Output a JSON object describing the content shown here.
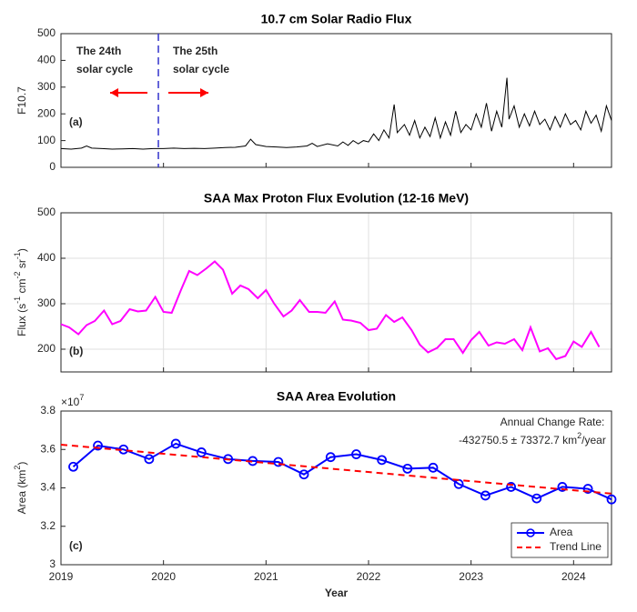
{
  "chart_data": [
    {
      "type": "line",
      "title": "10.7 cm Solar Radio Flux",
      "ylabel": [
        "F10.7"
      ],
      "xlim": [
        2019,
        2024.37
      ],
      "xticks": [
        2019,
        2020,
        2021,
        2022,
        2023,
        2024
      ],
      "xtick_labels": false,
      "ylim": [
        0,
        500
      ],
      "yticks": [
        0,
        100,
        200,
        300,
        400,
        500
      ],
      "grid": false,
      "annotations": [
        "The 24th",
        "solar cycle",
        "The 25th",
        "solar cycle",
        "(a)"
      ],
      "divider_x": 2019.95,
      "series": [
        {
          "color": "#000000",
          "x": [
            2019.0,
            2019.1,
            2019.2,
            2019.25,
            2019.3,
            2019.4,
            2019.5,
            2019.6,
            2019.7,
            2019.8,
            2019.9,
            2020.0,
            2020.1,
            2020.2,
            2020.3,
            2020.4,
            2020.5,
            2020.6,
            2020.7,
            2020.8,
            2020.85,
            2020.9,
            2021.0,
            2021.1,
            2021.2,
            2021.3,
            2021.4,
            2021.45,
            2021.5,
            2021.6,
            2021.7,
            2021.75,
            2021.8,
            2021.85,
            2021.9,
            2021.95,
            2022.0,
            2022.05,
            2022.1,
            2022.15,
            2022.2,
            2022.25,
            2022.28,
            2022.35,
            2022.4,
            2022.45,
            2022.5,
            2022.55,
            2022.6,
            2022.65,
            2022.7,
            2022.75,
            2022.8,
            2022.85,
            2022.9,
            2022.95,
            2023.0,
            2023.05,
            2023.1,
            2023.15,
            2023.2,
            2023.25,
            2023.3,
            2023.35,
            2023.37,
            2023.42,
            2023.47,
            2023.52,
            2023.57,
            2023.62,
            2023.67,
            2023.72,
            2023.77,
            2023.82,
            2023.87,
            2023.92,
            2023.97,
            2024.02,
            2024.07,
            2024.12,
            2024.17,
            2024.22,
            2024.27,
            2024.32,
            2024.37
          ],
          "values": [
            70,
            68,
            72,
            80,
            72,
            70,
            68,
            69,
            70,
            68,
            70,
            70,
            72,
            70,
            71,
            70,
            72,
            74,
            75,
            80,
            105,
            85,
            78,
            76,
            74,
            76,
            80,
            90,
            78,
            88,
            80,
            95,
            82,
            100,
            88,
            100,
            95,
            125,
            100,
            140,
            110,
            235,
            130,
            160,
            120,
            175,
            110,
            150,
            115,
            185,
            110,
            170,
            120,
            210,
            130,
            160,
            140,
            200,
            150,
            240,
            135,
            210,
            150,
            335,
            180,
            230,
            150,
            200,
            155,
            210,
            160,
            180,
            140,
            190,
            150,
            200,
            160,
            175,
            140,
            210,
            165,
            195,
            135,
            230,
            175
          ]
        }
      ]
    },
    {
      "type": "line",
      "title": "SAA Max Proton Flux Evolution  (12-16 MeV)",
      "ylabel": [
        "Flux (s",
        "-1",
        " cm",
        "-2",
        " sr",
        "-1",
        ")"
      ],
      "xlim": [
        2019,
        2024.37
      ],
      "xticks": [
        2019,
        2020,
        2021,
        2022,
        2023,
        2024
      ],
      "xtick_labels": false,
      "ylim": [
        150,
        500
      ],
      "yticks": [
        200,
        300,
        400,
        500
      ],
      "grid": true,
      "annotations": [
        "(b)"
      ],
      "series": [
        {
          "color": "#ff00ff",
          "x": [
            2019.0,
            2019.08,
            2019.17,
            2019.25,
            2019.33,
            2019.42,
            2019.5,
            2019.58,
            2019.67,
            2019.75,
            2019.83,
            2019.92,
            2020.0,
            2020.08,
            2020.17,
            2020.25,
            2020.33,
            2020.42,
            2020.5,
            2020.58,
            2020.67,
            2020.75,
            2020.83,
            2020.92,
            2021.0,
            2021.08,
            2021.17,
            2021.25,
            2021.33,
            2021.42,
            2021.5,
            2021.58,
            2021.67,
            2021.75,
            2021.83,
            2021.92,
            2022.0,
            2022.08,
            2022.17,
            2022.25,
            2022.33,
            2022.42,
            2022.5,
            2022.58,
            2022.67,
            2022.75,
            2022.83,
            2022.92,
            2023.0,
            2023.08,
            2023.17,
            2023.25,
            2023.33,
            2023.42,
            2023.5,
            2023.58,
            2023.67,
            2023.75,
            2023.83,
            2023.92,
            2024.0,
            2024.08,
            2024.17,
            2024.25
          ],
          "values": [
            255,
            248,
            233,
            253,
            262,
            285,
            255,
            262,
            288,
            283,
            285,
            315,
            282,
            280,
            330,
            372,
            363,
            378,
            393,
            375,
            322,
            340,
            332,
            312,
            330,
            300,
            272,
            285,
            308,
            282,
            282,
            280,
            305,
            265,
            263,
            258,
            242,
            245,
            275,
            260,
            270,
            242,
            210,
            193,
            203,
            222,
            222,
            192,
            220,
            238,
            208,
            215,
            212,
            222,
            198,
            248,
            195,
            202,
            178,
            185,
            217,
            205,
            238,
            205
          ]
        }
      ]
    },
    {
      "type": "line",
      "title": "SAA Area Evolution",
      "ylabel": [
        "Area (km",
        "2",
        ")"
      ],
      "xlabel": "Year",
      "y_multiplier": [
        "×10",
        "7"
      ],
      "xlim": [
        2019,
        2024.37
      ],
      "xticks": [
        2019,
        2020,
        2021,
        2022,
        2023,
        2024
      ],
      "xtick_labels": true,
      "ylim": [
        3,
        3.8
      ],
      "yticks": [
        3,
        3.2,
        3.4,
        3.6,
        3.8
      ],
      "grid": false,
      "annotations": [
        "(c)"
      ],
      "rate_label": "Annual Change Rate:",
      "rate_value": [
        "-432750.5 ± 73372.7 km",
        "2",
        "/year"
      ],
      "legend": "lower right",
      "series": [
        {
          "name": "Area",
          "color": "#0000ff",
          "marker": "o",
          "linestyle": "-",
          "x": [
            2019.12,
            2019.36,
            2019.61,
            2019.86,
            2020.12,
            2020.37,
            2020.63,
            2020.87,
            2021.12,
            2021.37,
            2021.63,
            2021.88,
            2022.13,
            2022.38,
            2022.63,
            2022.88,
            2023.14,
            2023.39,
            2023.64,
            2023.89,
            2024.14,
            2024.37
          ],
          "values": [
            3.51,
            3.62,
            3.6,
            3.55,
            3.63,
            3.585,
            3.55,
            3.54,
            3.535,
            3.47,
            3.56,
            3.575,
            3.545,
            3.5,
            3.505,
            3.42,
            3.36,
            3.405,
            3.345,
            3.405,
            3.395,
            3.34
          ]
        },
        {
          "name": "Trend Line",
          "color": "#ff0000",
          "linestyle": "--",
          "x": [
            2019,
            2024.37
          ],
          "values": [
            3.625,
            3.37
          ]
        }
      ]
    }
  ]
}
